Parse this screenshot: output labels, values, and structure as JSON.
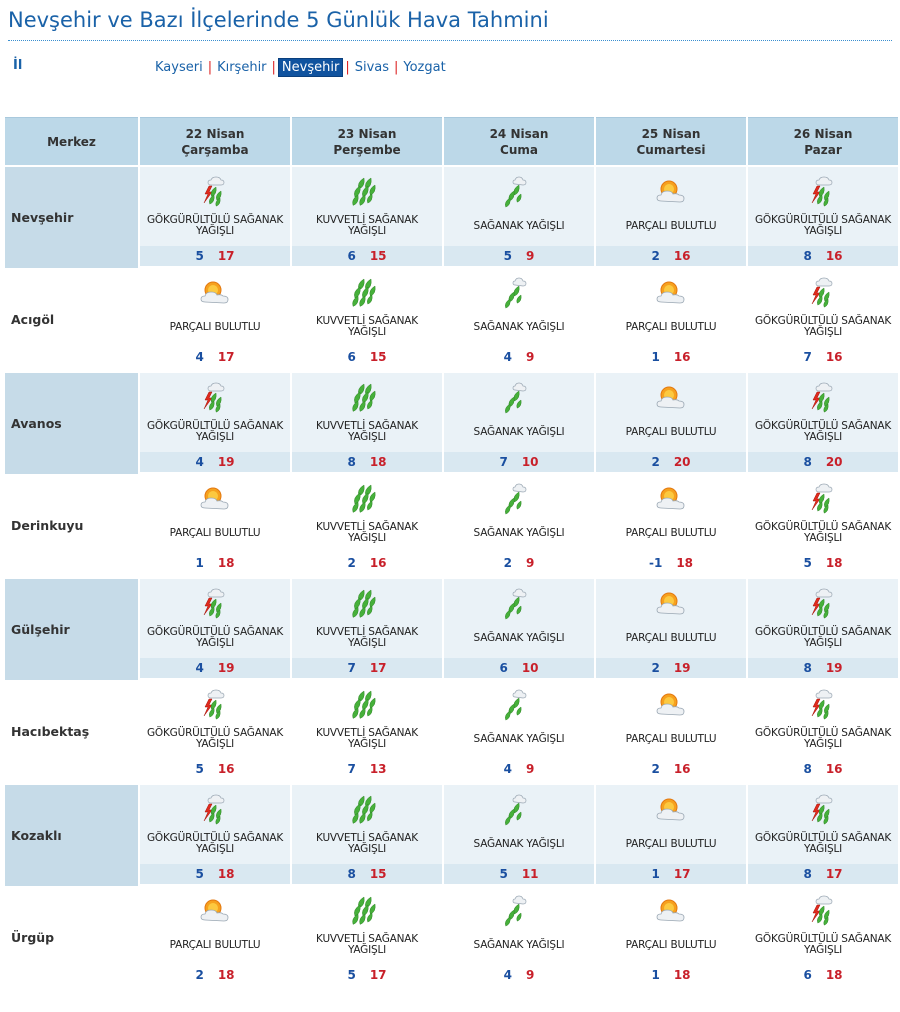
{
  "page": {
    "title": "Nevşehir ve Bazı İlçelerinde 5 Günlük Hava Tahmini",
    "il_label": "İl"
  },
  "city_nav": [
    {
      "label": "Kayseri",
      "active": false
    },
    {
      "label": "Kırşehir",
      "active": false
    },
    {
      "label": "Nevşehir",
      "active": true
    },
    {
      "label": "Sivas",
      "active": false
    },
    {
      "label": "Yozgat",
      "active": false
    }
  ],
  "table": {
    "merkez_label": "Merkez",
    "days": [
      {
        "date": "22 Nisan",
        "weekday": "Çarşamba"
      },
      {
        "date": "23 Nisan",
        "weekday": "Perşembe"
      },
      {
        "date": "24 Nisan",
        "weekday": "Cuma"
      },
      {
        "date": "25 Nisan",
        "weekday": "Cumartesi"
      },
      {
        "date": "26 Nisan",
        "weekday": "Pazar"
      }
    ],
    "rows": [
      {
        "name": "Nevşehir",
        "cells": [
          {
            "icon": "thunder-shower-icon",
            "cond": "GÖKGÜRÜLTÜLÜ SAĞANAK YAĞIŞLI",
            "min": "5",
            "max": "17"
          },
          {
            "icon": "heavy-shower-icon",
            "cond": "KUVVETLİ SAĞANAK YAĞIŞLI",
            "min": "6",
            "max": "15"
          },
          {
            "icon": "shower-icon",
            "cond": "SAĞANAK YAĞIŞLI",
            "min": "5",
            "max": "9"
          },
          {
            "icon": "partly-cloudy-icon",
            "cond": "PARÇALI BULUTLU",
            "min": "2",
            "max": "16"
          },
          {
            "icon": "thunder-shower-icon",
            "cond": "GÖKGÜRÜLTÜLÜ SAĞANAK YAĞIŞLI",
            "min": "8",
            "max": "16"
          }
        ]
      },
      {
        "name": "Acıgöl",
        "cells": [
          {
            "icon": "partly-cloudy-icon",
            "cond": "PARÇALI BULUTLU",
            "min": "4",
            "max": "17"
          },
          {
            "icon": "heavy-shower-icon",
            "cond": "KUVVETLİ SAĞANAK YAĞIŞLI",
            "min": "6",
            "max": "15"
          },
          {
            "icon": "shower-icon",
            "cond": "SAĞANAK YAĞIŞLI",
            "min": "4",
            "max": "9"
          },
          {
            "icon": "partly-cloudy-icon",
            "cond": "PARÇALI BULUTLU",
            "min": "1",
            "max": "16"
          },
          {
            "icon": "thunder-shower-icon",
            "cond": "GÖKGÜRÜLTÜLÜ SAĞANAK YAĞIŞLI",
            "min": "7",
            "max": "16"
          }
        ]
      },
      {
        "name": "Avanos",
        "cells": [
          {
            "icon": "thunder-shower-icon",
            "cond": "GÖKGÜRÜLTÜLÜ SAĞANAK YAĞIŞLI",
            "min": "4",
            "max": "19"
          },
          {
            "icon": "heavy-shower-icon",
            "cond": "KUVVETLİ SAĞANAK YAĞIŞLI",
            "min": "8",
            "max": "18"
          },
          {
            "icon": "shower-icon",
            "cond": "SAĞANAK YAĞIŞLI",
            "min": "7",
            "max": "10"
          },
          {
            "icon": "partly-cloudy-icon",
            "cond": "PARÇALI BULUTLU",
            "min": "2",
            "max": "20"
          },
          {
            "icon": "thunder-shower-icon",
            "cond": "GÖKGÜRÜLTÜLÜ SAĞANAK YAĞIŞLI",
            "min": "8",
            "max": "20"
          }
        ]
      },
      {
        "name": "Derinkuyu",
        "cells": [
          {
            "icon": "partly-cloudy-icon",
            "cond": "PARÇALI BULUTLU",
            "min": "1",
            "max": "18"
          },
          {
            "icon": "heavy-shower-icon",
            "cond": "KUVVETLİ SAĞANAK YAĞIŞLI",
            "min": "2",
            "max": "16"
          },
          {
            "icon": "shower-icon",
            "cond": "SAĞANAK YAĞIŞLI",
            "min": "2",
            "max": "9"
          },
          {
            "icon": "partly-cloudy-icon",
            "cond": "PARÇALI BULUTLU",
            "min": "-1",
            "max": "18"
          },
          {
            "icon": "thunder-shower-icon",
            "cond": "GÖKGÜRÜLTÜLÜ SAĞANAK YAĞIŞLI",
            "min": "5",
            "max": "18"
          }
        ]
      },
      {
        "name": "Gülşehir",
        "cells": [
          {
            "icon": "thunder-shower-icon",
            "cond": "GÖKGÜRÜLTÜLÜ SAĞANAK YAĞIŞLI",
            "min": "4",
            "max": "19"
          },
          {
            "icon": "heavy-shower-icon",
            "cond": "KUVVETLİ SAĞANAK YAĞIŞLI",
            "min": "7",
            "max": "17"
          },
          {
            "icon": "shower-icon",
            "cond": "SAĞANAK YAĞIŞLI",
            "min": "6",
            "max": "10"
          },
          {
            "icon": "partly-cloudy-icon",
            "cond": "PARÇALI BULUTLU",
            "min": "2",
            "max": "19"
          },
          {
            "icon": "thunder-shower-icon",
            "cond": "GÖKGÜRÜLTÜLÜ SAĞANAK YAĞIŞLI",
            "min": "8",
            "max": "19"
          }
        ]
      },
      {
        "name": "Hacıbektaş",
        "cells": [
          {
            "icon": "thunder-shower-icon",
            "cond": "GÖKGÜRÜLTÜLÜ SAĞANAK YAĞIŞLI",
            "min": "5",
            "max": "16"
          },
          {
            "icon": "heavy-shower-icon",
            "cond": "KUVVETLİ SAĞANAK YAĞIŞLI",
            "min": "7",
            "max": "13"
          },
          {
            "icon": "shower-icon",
            "cond": "SAĞANAK YAĞIŞLI",
            "min": "4",
            "max": "9"
          },
          {
            "icon": "partly-cloudy-icon",
            "cond": "PARÇALI BULUTLU",
            "min": "2",
            "max": "16"
          },
          {
            "icon": "thunder-shower-icon",
            "cond": "GÖKGÜRÜLTÜLÜ SAĞANAK YAĞIŞLI",
            "min": "8",
            "max": "16"
          }
        ]
      },
      {
        "name": "Kozaklı",
        "cells": [
          {
            "icon": "thunder-shower-icon",
            "cond": "GÖKGÜRÜLTÜLÜ SAĞANAK YAĞIŞLI",
            "min": "5",
            "max": "18"
          },
          {
            "icon": "heavy-shower-icon",
            "cond": "KUVVETLİ SAĞANAK YAĞIŞLI",
            "min": "8",
            "max": "15"
          },
          {
            "icon": "shower-icon",
            "cond": "SAĞANAK YAĞIŞLI",
            "min": "5",
            "max": "11"
          },
          {
            "icon": "partly-cloudy-icon",
            "cond": "PARÇALI BULUTLU",
            "min": "1",
            "max": "17"
          },
          {
            "icon": "thunder-shower-icon",
            "cond": "GÖKGÜRÜLTÜLÜ SAĞANAK YAĞIŞLI",
            "min": "8",
            "max": "17"
          }
        ]
      },
      {
        "name": "Ürgüp",
        "cells": [
          {
            "icon": "partly-cloudy-icon",
            "cond": "PARÇALI BULUTLU",
            "min": "2",
            "max": "18"
          },
          {
            "icon": "heavy-shower-icon",
            "cond": "KUVVETLİ SAĞANAK YAĞIŞLI",
            "min": "5",
            "max": "17"
          },
          {
            "icon": "shower-icon",
            "cond": "SAĞANAK YAĞIŞLI",
            "min": "4",
            "max": "9"
          },
          {
            "icon": "partly-cloudy-icon",
            "cond": "PARÇALI BULUTLU",
            "min": "1",
            "max": "18"
          },
          {
            "icon": "thunder-shower-icon",
            "cond": "GÖKGÜRÜLTÜLÜ SAĞANAK YAĞIŞLI",
            "min": "6",
            "max": "18"
          }
        ]
      }
    ]
  },
  "colors": {
    "title": "#1a62a8",
    "header_bg": "#bcd8e8",
    "min_temp": "#1a4fa0",
    "max_temp": "#c8202a",
    "active_nav": "#10539f"
  }
}
